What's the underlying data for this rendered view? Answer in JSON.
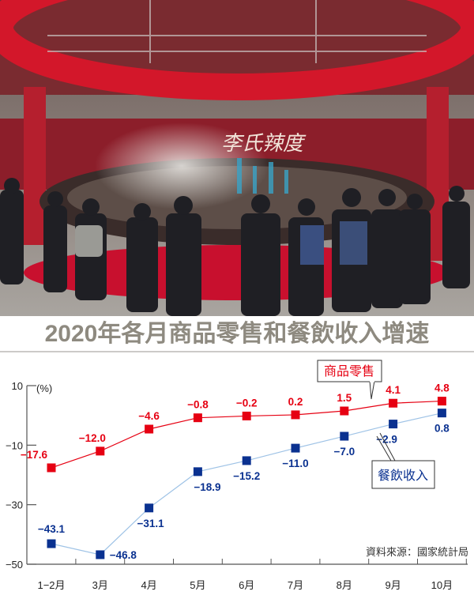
{
  "photo": {
    "description_icon": "hotpot-event-photo",
    "banner_text": "李氏辣度"
  },
  "title": "2020年各月商品零售和餐飲收入增速",
  "source": "資料來源：國家統計局",
  "chart_data": {
    "type": "line",
    "title": "2020年各月商品零售和餐飲收入增速",
    "ylabel": "(%)",
    "xlabel": "",
    "categories": [
      "1-2月",
      "3月",
      "4月",
      "5月",
      "6月",
      "7月",
      "8月",
      "9月",
      "10月"
    ],
    "ylim": [
      -50,
      10
    ],
    "yticks": [
      10,
      -10,
      -30,
      -50
    ],
    "grid": false,
    "series": [
      {
        "name": "商品零售",
        "color": "#e60012",
        "values": [
          -17.6,
          -12.0,
          -4.6,
          -0.8,
          -0.2,
          0.2,
          1.5,
          4.1,
          4.8
        ],
        "labels": [
          "−17.6",
          "−12.0",
          "−4.6",
          "−0.8",
          "−0.2",
          "0.2",
          "1.5",
          "4.1",
          "4.8"
        ]
      },
      {
        "name": "餐飲收入",
        "color": "#0a3190",
        "line_color": "#9fc3e6",
        "values": [
          -43.1,
          -46.8,
          -31.1,
          -18.9,
          -15.2,
          -11.0,
          -7.0,
          -2.9,
          0.8
        ],
        "labels": [
          "−43.1",
          "−46.8",
          "−31.1",
          "−18.9",
          "−15.2",
          "−11.0",
          "−7.0",
          "−2.9",
          "0.8"
        ]
      }
    ]
  }
}
